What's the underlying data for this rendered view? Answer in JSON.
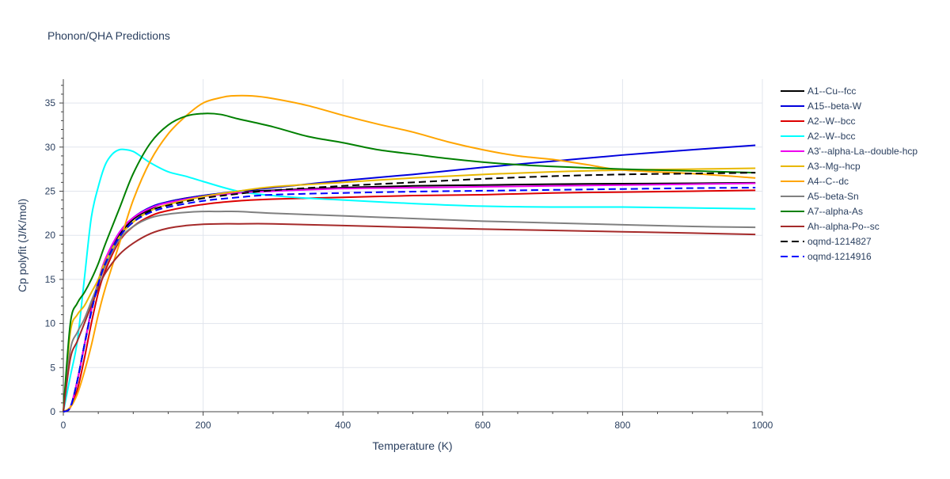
{
  "chart_data": {
    "type": "line",
    "title": "Phonon/QHA Predictions",
    "xlabel": "Temperature (K)",
    "ylabel": "Cp polyfit (J/K/mol)",
    "xlim": [
      0,
      1000
    ],
    "ylim": [
      0,
      37.7
    ],
    "xticks": [
      0,
      200,
      400,
      600,
      800,
      1000
    ],
    "yticks": [
      0,
      5,
      10,
      15,
      20,
      25,
      30,
      35
    ],
    "grid": true,
    "legend_position": "right",
    "series": [
      {
        "name": "A1--Cu--fcc",
        "color": "#000000",
        "dash": "solid",
        "x": [
          0,
          10,
          20,
          30,
          40,
          50,
          60,
          80,
          100,
          125,
          150,
          200,
          250,
          300,
          400,
          500,
          600,
          700,
          800,
          900,
          990
        ],
        "y": [
          0,
          0.5,
          3.5,
          7.5,
          11.5,
          14.5,
          17,
          20,
          21.8,
          23,
          23.8,
          24.5,
          24.9,
          25.1,
          25.4,
          25.6,
          25.7,
          25.8,
          25.85,
          25.9,
          25.95
        ]
      },
      {
        "name": "A15--beta-W",
        "color": "#0000dd",
        "dash": "solid",
        "x": [
          0,
          10,
          20,
          30,
          40,
          50,
          60,
          80,
          100,
          125,
          150,
          200,
          250,
          300,
          400,
          500,
          600,
          700,
          800,
          900,
          990
        ],
        "y": [
          0,
          0.5,
          3.5,
          7.5,
          11.5,
          14.8,
          17.2,
          20.3,
          22,
          23.2,
          23.8,
          24.5,
          25,
          25.4,
          26.2,
          26.9,
          27.7,
          28.4,
          29.1,
          29.7,
          30.2
        ]
      },
      {
        "name": "A2--W--bcc",
        "color": "#dd0000",
        "dash": "solid",
        "x": [
          0,
          10,
          20,
          30,
          40,
          50,
          60,
          80,
          100,
          125,
          150,
          200,
          250,
          300,
          400,
          500,
          600,
          700,
          800,
          900,
          990
        ],
        "y": [
          0,
          0.5,
          2.5,
          6,
          10,
          13.5,
          16,
          19.3,
          21,
          22.2,
          22.8,
          23.5,
          23.9,
          24.1,
          24.3,
          24.5,
          24.6,
          24.8,
          24.9,
          25,
          25.1
        ]
      },
      {
        "name": "A2--W--bcc",
        "color": "#00ffff",
        "dash": "solid",
        "x": [
          0,
          10,
          20,
          30,
          40,
          50,
          60,
          70,
          80,
          90,
          100,
          110,
          125,
          150,
          175,
          200,
          250,
          300,
          350,
          400,
          500,
          600,
          700,
          800,
          900,
          990
        ],
        "y": [
          0,
          4,
          8,
          15,
          22,
          25.5,
          28,
          29.2,
          29.7,
          29.7,
          29.5,
          29,
          28.2,
          27.2,
          26.7,
          26.1,
          25,
          24.5,
          24.2,
          24,
          23.6,
          23.3,
          23.2,
          23.2,
          23.1,
          23
        ]
      },
      {
        "name": "A3'--alpha-La--double-hcp",
        "color": "#ee00ee",
        "dash": "solid",
        "x": [
          0,
          10,
          20,
          30,
          40,
          50,
          60,
          80,
          100,
          125,
          150,
          200,
          250,
          300,
          400,
          500,
          600,
          700,
          800,
          900,
          990
        ],
        "y": [
          0,
          0.5,
          3.5,
          7.5,
          11.5,
          14.8,
          17.3,
          20.3,
          22,
          23.1,
          23.7,
          24.4,
          24.8,
          25,
          25.3,
          25.4,
          25.5,
          25.6,
          25.7,
          25.8,
          25.9
        ]
      },
      {
        "name": "A3--Mg--hcp",
        "color": "#e8b800",
        "dash": "solid",
        "x": [
          0,
          10,
          20,
          30,
          40,
          50,
          60,
          80,
          100,
          125,
          150,
          200,
          250,
          300,
          400,
          500,
          600,
          700,
          800,
          900,
          990
        ],
        "y": [
          0,
          9,
          11,
          12,
          13.5,
          15,
          17,
          19.8,
          21.5,
          22.8,
          23.5,
          24.4,
          25,
          25.5,
          26,
          26.5,
          26.9,
          27.2,
          27.4,
          27.5,
          27.6
        ]
      },
      {
        "name": "A4--C--dc",
        "color": "#ffa500",
        "dash": "solid",
        "x": [
          0,
          10,
          20,
          30,
          40,
          50,
          60,
          80,
          100,
          125,
          150,
          175,
          200,
          225,
          240,
          270,
          300,
          350,
          400,
          450,
          500,
          550,
          600,
          650,
          700,
          750,
          800,
          900,
          990
        ],
        "y": [
          0,
          0.5,
          2,
          4.5,
          7.5,
          11,
          14,
          19,
          24,
          28.5,
          31.5,
          33.5,
          35,
          35.6,
          35.8,
          35.8,
          35.5,
          34.7,
          33.6,
          32.6,
          31.7,
          30.6,
          29.7,
          29,
          28.6,
          28,
          27.4,
          27,
          26.5
        ]
      },
      {
        "name": "A5--beta-Sn",
        "color": "#808080",
        "dash": "solid",
        "x": [
          0,
          10,
          20,
          30,
          40,
          50,
          60,
          80,
          100,
          125,
          150,
          175,
          200,
          225,
          250,
          300,
          400,
          500,
          600,
          700,
          800,
          900,
          990
        ],
        "y": [
          0,
          7,
          9,
          10.5,
          12.5,
          14.5,
          16.5,
          19.5,
          21,
          22,
          22.4,
          22.6,
          22.7,
          22.7,
          22.7,
          22.5,
          22.2,
          21.9,
          21.6,
          21.4,
          21.2,
          21,
          20.9
        ]
      },
      {
        "name": "A7--alpha-As",
        "color": "#008000",
        "dash": "solid",
        "x": [
          0,
          10,
          20,
          30,
          40,
          50,
          60,
          80,
          100,
          125,
          150,
          175,
          200,
          225,
          250,
          300,
          350,
          400,
          450,
          500,
          550,
          600,
          650,
          700,
          800,
          900,
          990
        ],
        "y": [
          0,
          10,
          12.3,
          13.5,
          15,
          16.8,
          19,
          23,
          27,
          30.5,
          32.5,
          33.5,
          33.8,
          33.7,
          33.2,
          32.3,
          31.2,
          30.5,
          29.7,
          29.2,
          28.7,
          28.3,
          28,
          27.8,
          27.5,
          27.3,
          27.1
        ]
      },
      {
        "name": "Ah--alpha-Po--sc",
        "color": "#a52a2a",
        "dash": "solid",
        "x": [
          0,
          10,
          20,
          30,
          40,
          50,
          60,
          80,
          100,
          125,
          150,
          175,
          200,
          225,
          250,
          300,
          400,
          500,
          600,
          700,
          800,
          900,
          990
        ],
        "y": [
          0,
          6,
          8,
          10,
          12,
          14,
          15.7,
          17.8,
          19.1,
          20.2,
          20.8,
          21.1,
          21.25,
          21.3,
          21.3,
          21.3,
          21.1,
          20.9,
          20.7,
          20.55,
          20.4,
          20.25,
          20.1
        ]
      },
      {
        "name": "oqmd-1214827",
        "color": "#000000",
        "dash": "dash",
        "x": [
          0,
          10,
          20,
          30,
          40,
          50,
          60,
          80,
          100,
          125,
          150,
          200,
          250,
          300,
          400,
          500,
          600,
          700,
          800,
          900,
          990
        ],
        "y": [
          0,
          0.5,
          3.5,
          7.5,
          11.3,
          14.5,
          16.8,
          19.8,
          21.5,
          22.8,
          23.4,
          24.2,
          24.7,
          25.1,
          25.6,
          26,
          26.4,
          26.7,
          26.9,
          27,
          27.1
        ]
      },
      {
        "name": "oqmd-1214916",
        "color": "#0000ff",
        "dash": "dash",
        "x": [
          0,
          10,
          20,
          30,
          40,
          50,
          60,
          80,
          100,
          125,
          150,
          200,
          250,
          300,
          400,
          500,
          600,
          700,
          800,
          900,
          990
        ],
        "y": [
          0,
          0.5,
          3.5,
          7.5,
          11.3,
          14.5,
          16.8,
          19.8,
          21.5,
          22.6,
          23.2,
          23.9,
          24.3,
          24.6,
          24.8,
          24.95,
          25.05,
          25.15,
          25.25,
          25.35,
          25.4
        ]
      }
    ]
  }
}
